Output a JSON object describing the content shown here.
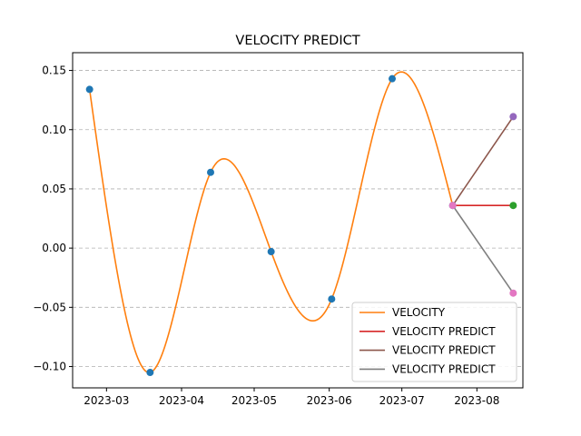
{
  "chart_data": {
    "type": "line",
    "title": "VELOCITY PREDICT",
    "xlabel": "",
    "ylabel": "",
    "x_ticks": [
      "2023-03",
      "2023-04",
      "2023-05",
      "2023-06",
      "2023-07",
      "2023-08"
    ],
    "y_ticks": [
      "0.15",
      "0.10",
      "0.05",
      "0.00",
      "−0.05",
      "−0.10"
    ],
    "y_tick_values": [
      0.15,
      0.1,
      0.05,
      0.0,
      -0.05,
      -0.1
    ],
    "x_tick_dates": [
      "2023-03-01",
      "2023-04-01",
      "2023-05-01",
      "2023-06-01",
      "2023-07-01",
      "2023-08-01"
    ],
    "xlim": [
      "2023-02-15",
      "2023-08-20"
    ],
    "ylim": [
      -0.118,
      0.165
    ],
    "grid": "horizontal dashed",
    "legend_position": "lower right",
    "observed_points": {
      "color": "#1f77b4",
      "x": [
        "2023-02-22",
        "2023-03-19",
        "2023-04-13",
        "2023-05-08",
        "2023-06-02",
        "2023-06-27",
        "2023-07-22"
      ],
      "y": [
        0.134,
        -0.105,
        0.064,
        -0.003,
        -0.043,
        0.143,
        0.036
      ]
    },
    "series": [
      {
        "name": "VELOCITY",
        "color": "#ff7f0e",
        "kind": "smooth-curve",
        "x": [
          "2023-02-22",
          "2023-03-19",
          "2023-04-13",
          "2023-05-08",
          "2023-06-02",
          "2023-06-27",
          "2023-07-22"
        ],
        "y": [
          0.134,
          -0.105,
          0.064,
          -0.003,
          -0.043,
          0.143,
          0.036
        ]
      },
      {
        "name": "VELOCITY PREDICT",
        "color": "#d62728",
        "end_marker_color": "#2ca02c",
        "x": [
          "2023-07-22",
          "2023-08-16"
        ],
        "y": [
          0.036,
          0.036
        ]
      },
      {
        "name": "VELOCITY PREDICT",
        "color": "#8c564b",
        "end_marker_color": "#9467bd",
        "x": [
          "2023-07-22",
          "2023-08-16"
        ],
        "y": [
          0.036,
          0.111
        ]
      },
      {
        "name": "VELOCITY PREDICT",
        "color": "#7f7f7f",
        "end_marker_color": "#e377c2",
        "x": [
          "2023-07-22",
          "2023-08-16"
        ],
        "y": [
          0.036,
          -0.038
        ]
      }
    ],
    "start_marker_color": "#e377c2"
  }
}
